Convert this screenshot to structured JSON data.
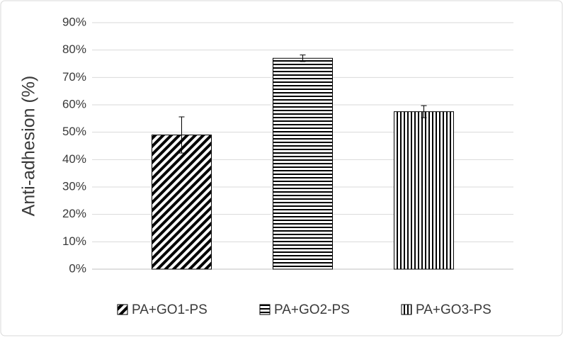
{
  "chart_data": {
    "type": "bar",
    "ylabel": "Anti-adhesion (%)",
    "categories": [
      null
    ],
    "ylim": [
      0,
      90
    ],
    "yticks": [
      {
        "value": 0,
        "label": "0%"
      },
      {
        "value": 10,
        "label": "10%"
      },
      {
        "value": 20,
        "label": "20%"
      },
      {
        "value": 30,
        "label": "30%"
      },
      {
        "value": 40,
        "label": "40%"
      },
      {
        "value": 50,
        "label": "50%"
      },
      {
        "value": 60,
        "label": "60%"
      },
      {
        "value": 70,
        "label": "70%"
      },
      {
        "value": 80,
        "label": "80%"
      },
      {
        "value": 90,
        "label": "90%"
      }
    ],
    "grid": true,
    "legend": "bottom",
    "series": [
      {
        "name": "PA+GO1-PS",
        "color": "#000000",
        "pattern": "diagonal",
        "values": [
          49
        ],
        "errors": [
          6.6
        ]
      },
      {
        "name": "PA+GO2-PS",
        "color": "#000000",
        "pattern": "horizontal",
        "values": [
          77
        ],
        "errors": [
          1.2
        ]
      },
      {
        "name": "PA+GO3-PS",
        "color": "#000000",
        "pattern": "vertical",
        "values": [
          57.5
        ],
        "errors": [
          2.2
        ]
      }
    ]
  }
}
